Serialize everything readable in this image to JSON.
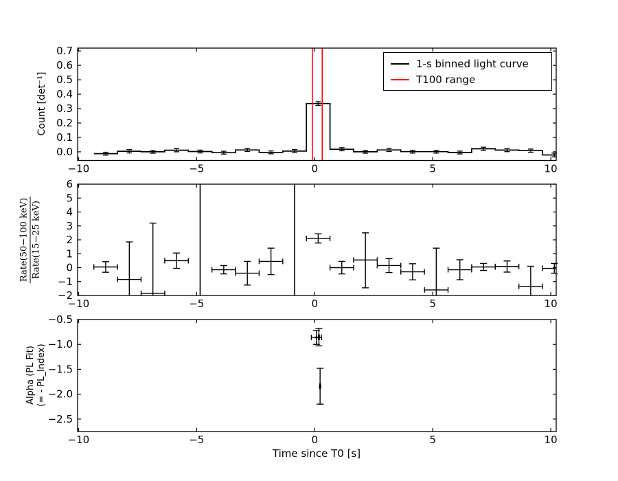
{
  "colors": {
    "line": "#000000",
    "t100": "#ff0000",
    "background": "#ffffff",
    "text": "#000000"
  },
  "xlabel": "Time since T0 [s]",
  "xlim": [
    -10.04,
    10.23
  ],
  "x_ticks": {
    "values": [
      -10,
      -5,
      0,
      5,
      10
    ],
    "labels": [
      "−10",
      "−5",
      "0",
      "5",
      "10"
    ]
  },
  "legend": {
    "entries": [
      {
        "label": "1-s binned light curve",
        "color": "#000000"
      },
      {
        "label": "T100 range",
        "color": "#ff0000"
      }
    ]
  },
  "chart_data": [
    {
      "type": "step",
      "series_name": "1-s binned light curve",
      "ylabel": "Count [det⁻¹]",
      "ylim": [
        -0.06,
        0.72
      ],
      "yticks": {
        "values": [
          0.0,
          0.1,
          0.2,
          0.3,
          0.4,
          0.5,
          0.6,
          0.7
        ],
        "labels": [
          "0.0",
          "0.1",
          "0.2",
          "0.3",
          "0.4",
          "0.5",
          "0.6",
          "0.7"
        ]
      },
      "bin_width": 1.0,
      "x": [
        -8.85,
        -7.85,
        -6.85,
        -5.85,
        -4.85,
        -3.85,
        -2.85,
        -1.85,
        -0.85,
        0.15,
        1.15,
        2.15,
        3.15,
        4.15,
        5.15,
        6.15,
        7.15,
        8.15,
        9.15,
        10.15
      ],
      "y": [
        -0.013,
        0.004,
        0.0,
        0.011,
        0.002,
        -0.006,
        0.013,
        -0.004,
        0.005,
        0.335,
        0.018,
        0.0,
        0.013,
        0.001,
        0.001,
        -0.005,
        0.021,
        0.012,
        0.008,
        -0.022
      ],
      "yerr": [
        0.01,
        0.012,
        0.01,
        0.011,
        0.01,
        0.01,
        0.011,
        0.01,
        0.011,
        0.013,
        0.011,
        0.01,
        0.011,
        0.01,
        0.01,
        0.01,
        0.011,
        0.011,
        0.011,
        0.013
      ],
      "t100_range": [
        -0.1,
        0.32
      ]
    },
    {
      "type": "errorbar",
      "ylabel_numerator": "Rate(50−100 keV)",
      "ylabel_denominator": "Rate(15−25 keV)",
      "ylim": [
        -2,
        6
      ],
      "yticks": {
        "values": [
          -2,
          -1,
          0,
          1,
          2,
          3,
          4,
          5,
          6
        ],
        "labels": [
          "−2",
          "−1",
          "0",
          "1",
          "2",
          "3",
          "4",
          "5",
          "6"
        ]
      },
      "xerr": 0.5,
      "points": [
        {
          "x": -8.85,
          "y": 0.05,
          "yerr_up": 0.38,
          "yerr_down": 0.38
        },
        {
          "x": -7.85,
          "y": -0.85,
          "yerr_up": 2.7,
          "yerr_down": null
        },
        {
          "x": -6.85,
          "y": -1.85,
          "yerr_up": 5.05,
          "yerr_down": null
        },
        {
          "x": -5.85,
          "y": 0.5,
          "yerr_up": 0.55,
          "yerr_down": 0.55
        },
        {
          "x": -3.85,
          "y": -0.15,
          "yerr_up": 0.3,
          "yerr_down": 0.3
        },
        {
          "x": -2.85,
          "y": -0.4,
          "yerr_up": 0.85,
          "yerr_down": 0.85
        },
        {
          "x": -1.85,
          "y": 0.45,
          "yerr_up": 0.95,
          "yerr_down": 0.95
        },
        {
          "x": 0.15,
          "y": 2.1,
          "yerr_up": 0.33,
          "yerr_down": 0.33
        },
        {
          "x": 1.15,
          "y": 0.0,
          "yerr_up": 0.45,
          "yerr_down": 0.45
        },
        {
          "x": 2.15,
          "y": 0.55,
          "yerr_up": 1.95,
          "yerr_down": 2.0
        },
        {
          "x": 3.15,
          "y": 0.15,
          "yerr_up": 0.5,
          "yerr_down": 0.5
        },
        {
          "x": 4.15,
          "y": -0.3,
          "yerr_up": 0.58,
          "yerr_down": 0.58
        },
        {
          "x": 5.15,
          "y": -1.6,
          "yerr_up": 3.0,
          "yerr_down": null
        },
        {
          "x": 6.15,
          "y": -0.15,
          "yerr_up": 0.72,
          "yerr_down": 0.72
        },
        {
          "x": 7.15,
          "y": 0.05,
          "yerr_up": 0.25,
          "yerr_down": 0.25
        },
        {
          "x": 8.15,
          "y": 0.08,
          "yerr_up": 0.4,
          "yerr_down": 0.4
        },
        {
          "x": 9.15,
          "y": -1.35,
          "yerr_up": 1.45,
          "yerr_down": null
        },
        {
          "x": 10.15,
          "y": -0.05,
          "yerr_up": 0.35,
          "yerr_down": 0.35
        }
      ],
      "full_height_error_lines_x": [
        -4.85,
        -0.85
      ]
    },
    {
      "type": "errorbar",
      "ylabel_line1": "Alpha (PL Fit)",
      "ylabel_line2": "(= - PL_Index)",
      "ylim": [
        -2.75,
        -0.5
      ],
      "yticks": {
        "values": [
          -0.5,
          -1.0,
          -1.5,
          -2.0,
          -2.5
        ],
        "labels": [
          "−0.5",
          "−1.0",
          "−1.5",
          "−2.0",
          "−2.5"
        ]
      },
      "points": [
        {
          "x": 0.075,
          "y": -0.86,
          "xerr": 0.215,
          "yerr": 0.14
        },
        {
          "x": 0.18,
          "y": -0.855,
          "xerr": 0.02,
          "yerr": 0.175
        },
        {
          "x": 0.23,
          "y": -1.84,
          "xerr": 0.02,
          "yerr": 0.36
        }
      ]
    }
  ]
}
